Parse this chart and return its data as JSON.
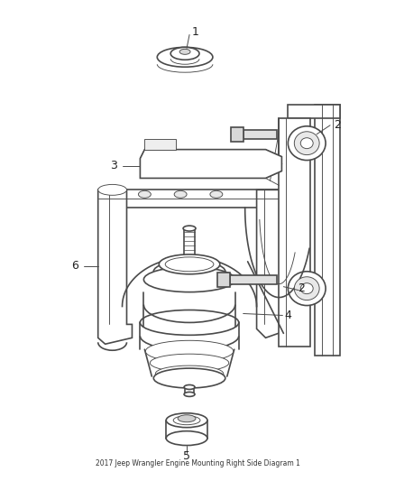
{
  "background_color": "#ffffff",
  "line_color": "#4a4a4a",
  "label_color": "#222222",
  "label_fontsize": 9,
  "fig_width": 4.38,
  "fig_height": 5.33,
  "lw_main": 1.2,
  "lw_thin": 0.65,
  "lw_thick": 1.6
}
